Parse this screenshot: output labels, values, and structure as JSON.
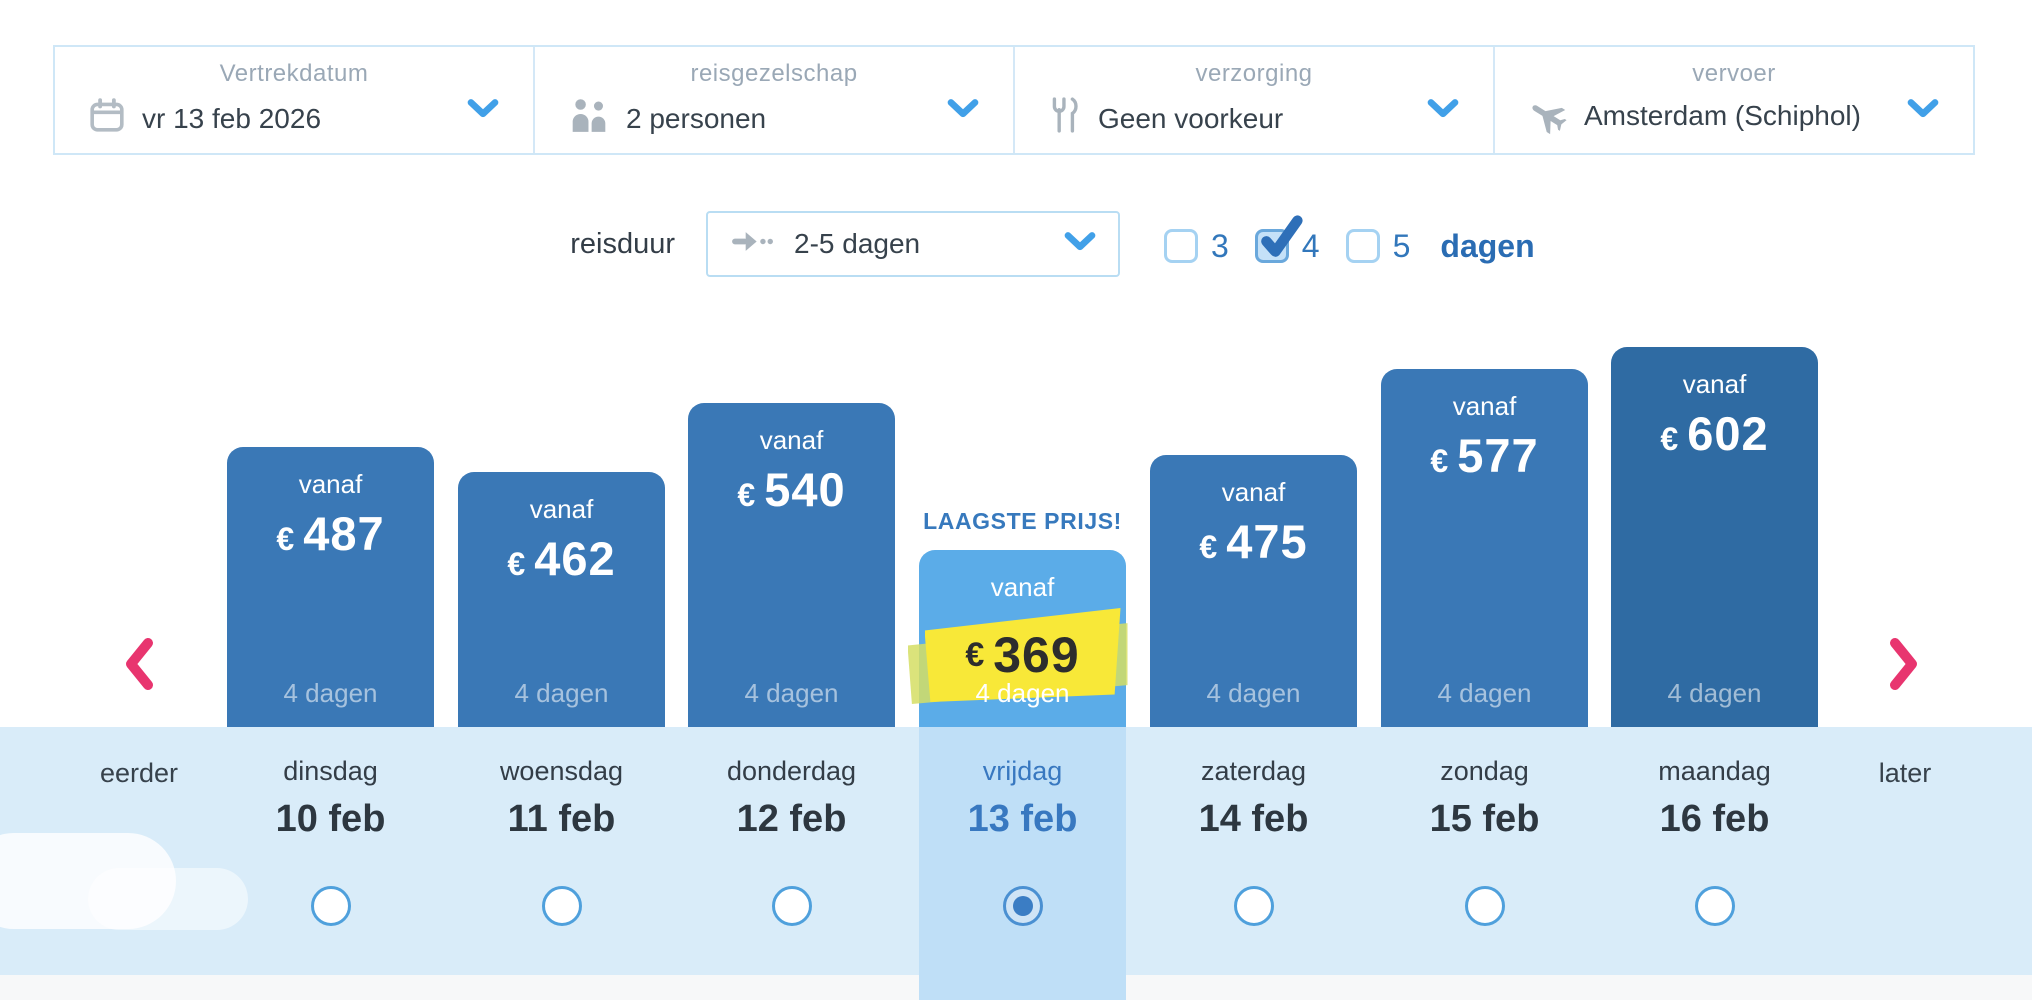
{
  "filterbar": {
    "items": [
      {
        "label": "Vertrekdatum",
        "value": "vr 13 feb 2026",
        "icon": "calendar-icon"
      },
      {
        "label": "reisgezelschap",
        "value": "2 personen",
        "icon": "people-icon"
      },
      {
        "label": "verzorging",
        "value": "Geen voorkeur",
        "icon": "cutlery-icon"
      },
      {
        "label": "vervoer",
        "value": "Amsterdam (Schiphol)",
        "icon": "plane-icon"
      }
    ]
  },
  "duration_row": {
    "label": "reisduur",
    "dropdown_value": "2-5 dagen",
    "checkboxes": [
      {
        "label": "3",
        "checked": false
      },
      {
        "label": "4",
        "checked": true
      },
      {
        "label": "5",
        "checked": false
      }
    ],
    "suffix_label": "dagen"
  },
  "price_chart": {
    "type": "bar",
    "vanaf_label": "vanaf",
    "currency": "€",
    "lowest_price_label": "LAAGSTE PRIJS!",
    "earlier_label": "eerder",
    "later_label": "later",
    "days": [
      {
        "day": "dinsdag",
        "date": "10 feb",
        "price": 487,
        "duration": "4 dagen",
        "selected": false,
        "shade": "normal"
      },
      {
        "day": "woensdag",
        "date": "11 feb",
        "price": 462,
        "duration": "4 dagen",
        "selected": false,
        "shade": "normal"
      },
      {
        "day": "donderdag",
        "date": "12 feb",
        "price": 540,
        "duration": "4 dagen",
        "selected": false,
        "shade": "normal"
      },
      {
        "day": "vrijdag",
        "date": "13 feb",
        "price": 369,
        "duration": "4 dagen",
        "selected": true,
        "shade": "selected"
      },
      {
        "day": "zaterdag",
        "date": "14 feb",
        "price": 475,
        "duration": "4 dagen",
        "selected": false,
        "shade": "normal"
      },
      {
        "day": "zondag",
        "date": "15 feb",
        "price": 577,
        "duration": "4 dagen",
        "selected": false,
        "shade": "normal"
      },
      {
        "day": "maandag",
        "date": "16 feb",
        "price": 602,
        "duration": "4 dagen",
        "selected": false,
        "shade": "dark"
      }
    ]
  },
  "colors": {
    "bar_normal": "#3a78b6",
    "bar_dark": "#2f6ba3",
    "bar_selected": "#5bace8",
    "column_highlight": "#bfdff7",
    "strip_background": "#d9ecf9",
    "accent_blue": "#41a0e8",
    "text_blue": "#3878c0",
    "nav_pink": "#e8356f",
    "sticker_yellow": "#f8e838"
  }
}
